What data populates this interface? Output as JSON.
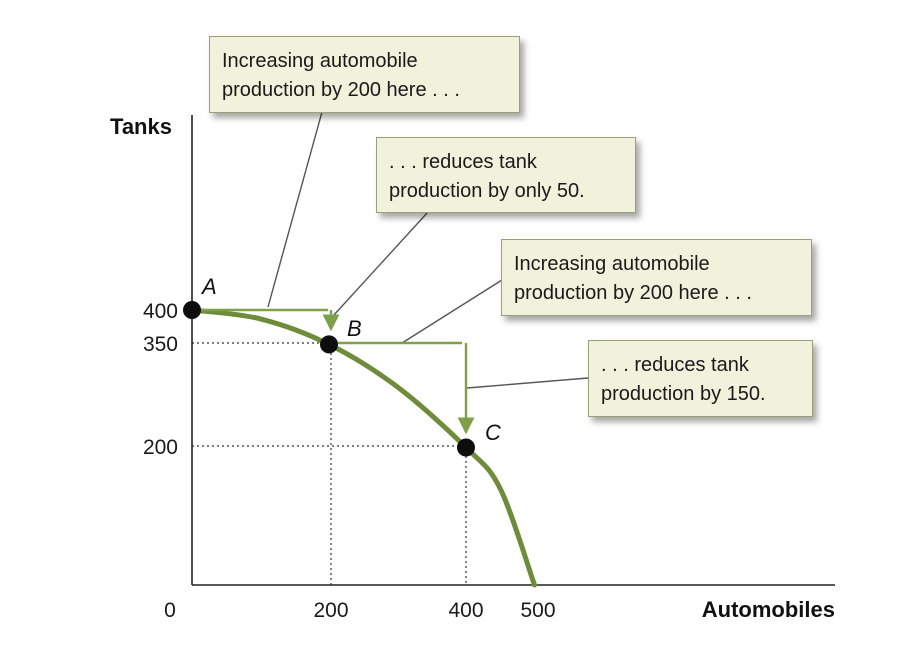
{
  "chart_data": {
    "type": "line",
    "x_axis_label": "Automobiles",
    "y_axis_label": "Tanks",
    "x_ticks": [
      "0",
      "200",
      "400",
      "500"
    ],
    "y_ticks": [
      "400",
      "350",
      "200"
    ],
    "xlim": [
      0,
      500
    ],
    "ylim": [
      0,
      400
    ],
    "grid": false,
    "curve_color": "#6e8c3a",
    "arrow_color": "#7fa04a",
    "series": [
      {
        "x": [
          0,
          100,
          200,
          300,
          400,
          450,
          500
        ],
        "y": [
          400,
          387,
          350,
          288,
          200,
          140,
          0
        ]
      }
    ],
    "points": [
      {
        "label": "A",
        "x": 0,
        "y": 400
      },
      {
        "label": "B",
        "x": 200,
        "y": 350
      },
      {
        "label": "C",
        "x": 400,
        "y": 200
      }
    ],
    "callouts": [
      {
        "lines": [
          "Increasing automobile",
          "production by 200 here . . ."
        ]
      },
      {
        "lines": [
          ". . . reduces tank",
          "production by only 50."
        ]
      },
      {
        "lines": [
          "Increasing automobile",
          "production by 200 here . . ."
        ]
      },
      {
        "lines": [
          ". . . reduces tank",
          "production by 150."
        ]
      }
    ]
  }
}
